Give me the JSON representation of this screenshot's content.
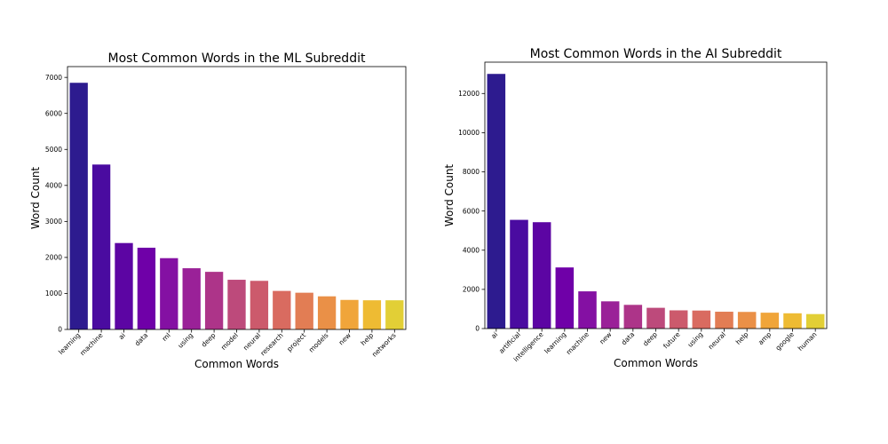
{
  "chart_data": [
    {
      "type": "bar",
      "title": "Most Common Words in the ML Subreddit",
      "xlabel": "Common Words",
      "ylabel": "Word Count",
      "ylim": [
        0,
        7300
      ],
      "yticks": [
        0,
        1000,
        2000,
        3000,
        4000,
        5000,
        6000,
        7000
      ],
      "categories": [
        "learning",
        "machine",
        "ai",
        "data",
        "ml",
        "using",
        "deep",
        "model",
        "neural",
        "research",
        "project",
        "models",
        "new",
        "help",
        "networks"
      ],
      "values": [
        6850,
        4580,
        2400,
        2270,
        1980,
        1700,
        1600,
        1380,
        1350,
        1070,
        1020,
        920,
        820,
        810,
        810
      ],
      "colors": [
        "#2d1b8f",
        "#4a0ba0",
        "#5c05a3",
        "#6f00a8",
        "#8410a3",
        "#9a2198",
        "#ad3489",
        "#bd4a7b",
        "#cc5a6c",
        "#d96b60",
        "#e27d54",
        "#ea9047",
        "#f0a53a",
        "#eebb33",
        "#e2cf36"
      ],
      "grid": false
    },
    {
      "type": "bar",
      "title": "Most Common Words in the AI Subreddit",
      "xlabel": "Common Words",
      "ylabel": "Word Count",
      "ylim": [
        0,
        13600
      ],
      "yticks": [
        0,
        2000,
        4000,
        6000,
        8000,
        10000,
        12000
      ],
      "categories": [
        "ai",
        "artificial",
        "intelligence",
        "learning",
        "machine",
        "new",
        "data",
        "deep",
        "future",
        "using",
        "neural",
        "help",
        "amp",
        "google",
        "human"
      ],
      "values": [
        13000,
        5550,
        5430,
        3120,
        1900,
        1390,
        1210,
        1060,
        930,
        920,
        860,
        850,
        810,
        780,
        740
      ],
      "colors": [
        "#2d1b8f",
        "#4a0ba0",
        "#5c05a3",
        "#6f00a8",
        "#8410a3",
        "#9a2198",
        "#ad3489",
        "#bd4a7b",
        "#cc5a6c",
        "#d96b60",
        "#e27d54",
        "#ea9047",
        "#f0a53a",
        "#eebb33",
        "#e2cf36"
      ],
      "grid": false
    }
  ]
}
